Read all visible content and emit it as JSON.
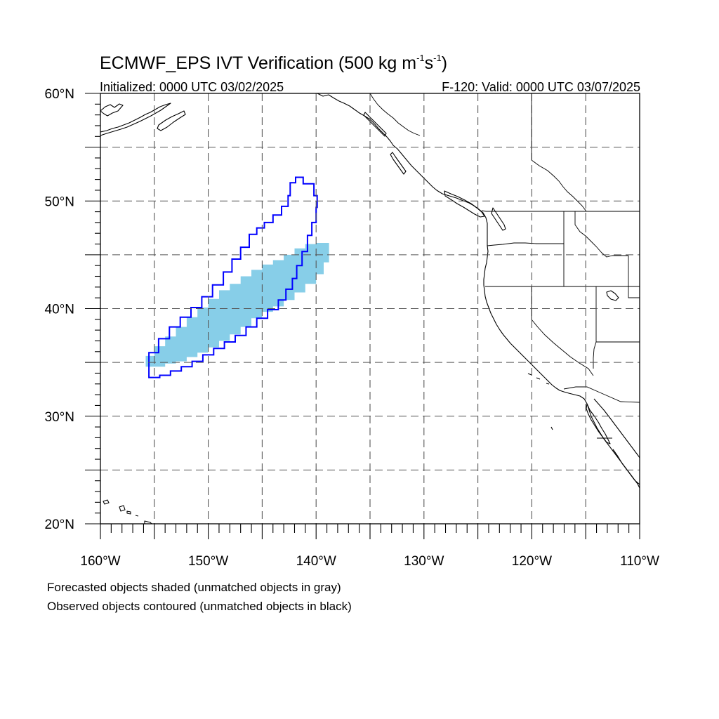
{
  "title": {
    "main": "ECMWF_EPS IVT Verification (500 kg m",
    "sup1": "-1",
    "mid": "s",
    "sup2": "-1",
    "end": ")"
  },
  "init_label": "Initialized: 0000 UTC 03/02/2025",
  "valid_label": "F-120: Valid: 0000 UTC 03/07/2025",
  "footer": {
    "line1": "Forecasted objects shaded (unmatched objects in gray)",
    "line2": "Observed objects contoured (unmatched objects in black)"
  },
  "map": {
    "lon_range": [
      -160,
      -110
    ],
    "lat_range": [
      20,
      60
    ],
    "lat_labels": [
      "60°N",
      "50°N",
      "40°N",
      "30°N",
      "20°N"
    ],
    "lon_labels": [
      "160°W",
      "150°W",
      "140°W",
      "130°W",
      "120°W",
      "110°W"
    ],
    "grid_lons": [
      -155,
      -150,
      -145,
      -140,
      -135,
      -130,
      -125,
      -120,
      -115
    ],
    "grid_lats": [
      55,
      50,
      45,
      40,
      35,
      30,
      25
    ],
    "colors": {
      "forecast_fill": "#87CEE8",
      "observed_contour": "#0000FF",
      "coastline": "#000000",
      "grid": "#555555"
    },
    "forecast_object": {
      "name": "Forecasted objects shaded",
      "color": "#87CEE8",
      "outline_lonlat": [
        [
          -155.8,
          34.6
        ],
        [
          -155,
          34.6
        ],
        [
          -154,
          34.9
        ],
        [
          -153,
          35.1
        ],
        [
          -152,
          35.5
        ],
        [
          -151,
          35.9
        ],
        [
          -150,
          36.4
        ],
        [
          -149,
          37
        ],
        [
          -148,
          37.6
        ],
        [
          -147,
          38.3
        ],
        [
          -146,
          39.1
        ],
        [
          -145,
          39.7
        ],
        [
          -144,
          40.2
        ],
        [
          -143,
          40.8
        ],
        [
          -142,
          41.5
        ],
        [
          -141,
          42.3
        ],
        [
          -140,
          43.2
        ],
        [
          -139.3,
          44.3
        ],
        [
          -138.8,
          45.5
        ],
        [
          -138.8,
          46.1
        ],
        [
          -140,
          46
        ],
        [
          -141,
          45.6
        ],
        [
          -142,
          45
        ],
        [
          -143,
          44.5
        ],
        [
          -144,
          44.1
        ],
        [
          -145,
          43.6
        ],
        [
          -146,
          43
        ],
        [
          -147,
          42.3
        ],
        [
          -148,
          41.7
        ],
        [
          -149,
          40.9
        ],
        [
          -150,
          40.1
        ],
        [
          -151,
          39.2
        ],
        [
          -152,
          38.3
        ],
        [
          -153,
          37.4
        ],
        [
          -154,
          36.5
        ],
        [
          -155,
          35.6
        ],
        [
          -155.8,
          35.2
        ]
      ]
    },
    "observed_object": {
      "name": "Observed objects contoured",
      "color": "#0000FF",
      "outline_lonlat": [
        [
          -155.5,
          33.6
        ],
        [
          -154.5,
          33.8
        ],
        [
          -153.5,
          34.2
        ],
        [
          -152.5,
          34.6
        ],
        [
          -151.5,
          35.1
        ],
        [
          -150.5,
          35.7
        ],
        [
          -149.5,
          36.3
        ],
        [
          -148.5,
          36.9
        ],
        [
          -147.5,
          37.5
        ],
        [
          -146.5,
          38.3
        ],
        [
          -145.5,
          39.1
        ],
        [
          -144.5,
          39.9
        ],
        [
          -143.5,
          40.8
        ],
        [
          -142.8,
          41.8
        ],
        [
          -142.2,
          42.8
        ],
        [
          -141.8,
          44
        ],
        [
          -141.3,
          45.3
        ],
        [
          -140.8,
          46.8
        ],
        [
          -140.4,
          48
        ],
        [
          -140,
          49.4
        ],
        [
          -139.9,
          50.5
        ],
        [
          -140.2,
          51.6
        ],
        [
          -141.2,
          52.2
        ],
        [
          -141.9,
          51.7
        ],
        [
          -142.4,
          50.5
        ],
        [
          -142.6,
          49.5
        ],
        [
          -143.2,
          48.7
        ],
        [
          -144,
          48
        ],
        [
          -144.8,
          47.5
        ],
        [
          -145.5,
          46.9
        ],
        [
          -146.2,
          45.7
        ],
        [
          -147,
          44.6
        ],
        [
          -147.8,
          43.4
        ],
        [
          -148.6,
          42.2
        ],
        [
          -149.6,
          41.1
        ],
        [
          -150.6,
          40.1
        ],
        [
          -151.6,
          39.2
        ],
        [
          -152.6,
          38.3
        ],
        [
          -153.6,
          37.2
        ],
        [
          -154.6,
          35.9
        ],
        [
          -155.5,
          34.6
        ]
      ]
    }
  }
}
